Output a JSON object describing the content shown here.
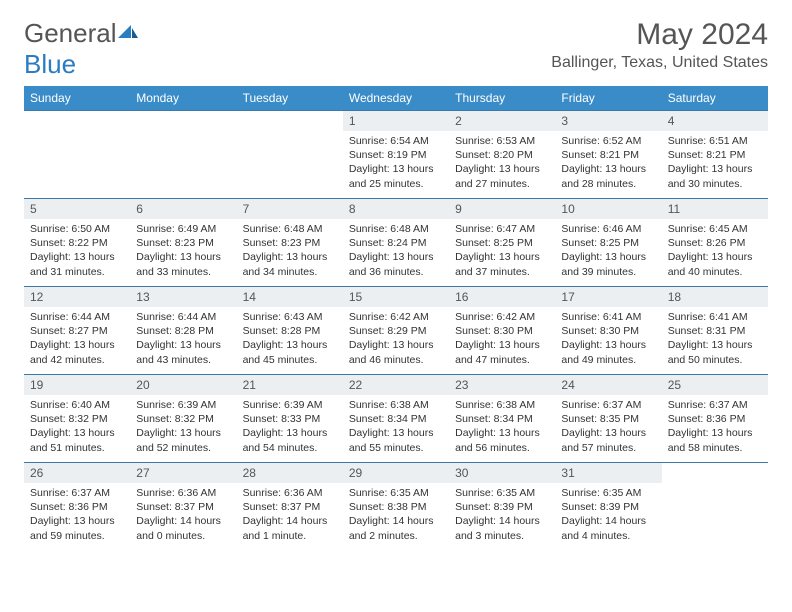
{
  "logo": {
    "general": "General",
    "blue": "Blue"
  },
  "title": "May 2024",
  "location": "Ballinger, Texas, United States",
  "header_color": "#3a8cc9",
  "border_color": "#3a7aa8",
  "daynum_bg": "#eceff1",
  "weekdays": [
    "Sunday",
    "Monday",
    "Tuesday",
    "Wednesday",
    "Thursday",
    "Friday",
    "Saturday"
  ],
  "days": [
    {
      "n": "",
      "sr": "",
      "ss": "",
      "dl": ""
    },
    {
      "n": "",
      "sr": "",
      "ss": "",
      "dl": ""
    },
    {
      "n": "",
      "sr": "",
      "ss": "",
      "dl": ""
    },
    {
      "n": "1",
      "sr": "Sunrise: 6:54 AM",
      "ss": "Sunset: 8:19 PM",
      "dl": "Daylight: 13 hours and 25 minutes."
    },
    {
      "n": "2",
      "sr": "Sunrise: 6:53 AM",
      "ss": "Sunset: 8:20 PM",
      "dl": "Daylight: 13 hours and 27 minutes."
    },
    {
      "n": "3",
      "sr": "Sunrise: 6:52 AM",
      "ss": "Sunset: 8:21 PM",
      "dl": "Daylight: 13 hours and 28 minutes."
    },
    {
      "n": "4",
      "sr": "Sunrise: 6:51 AM",
      "ss": "Sunset: 8:21 PM",
      "dl": "Daylight: 13 hours and 30 minutes."
    },
    {
      "n": "5",
      "sr": "Sunrise: 6:50 AM",
      "ss": "Sunset: 8:22 PM",
      "dl": "Daylight: 13 hours and 31 minutes."
    },
    {
      "n": "6",
      "sr": "Sunrise: 6:49 AM",
      "ss": "Sunset: 8:23 PM",
      "dl": "Daylight: 13 hours and 33 minutes."
    },
    {
      "n": "7",
      "sr": "Sunrise: 6:48 AM",
      "ss": "Sunset: 8:23 PM",
      "dl": "Daylight: 13 hours and 34 minutes."
    },
    {
      "n": "8",
      "sr": "Sunrise: 6:48 AM",
      "ss": "Sunset: 8:24 PM",
      "dl": "Daylight: 13 hours and 36 minutes."
    },
    {
      "n": "9",
      "sr": "Sunrise: 6:47 AM",
      "ss": "Sunset: 8:25 PM",
      "dl": "Daylight: 13 hours and 37 minutes."
    },
    {
      "n": "10",
      "sr": "Sunrise: 6:46 AM",
      "ss": "Sunset: 8:25 PM",
      "dl": "Daylight: 13 hours and 39 minutes."
    },
    {
      "n": "11",
      "sr": "Sunrise: 6:45 AM",
      "ss": "Sunset: 8:26 PM",
      "dl": "Daylight: 13 hours and 40 minutes."
    },
    {
      "n": "12",
      "sr": "Sunrise: 6:44 AM",
      "ss": "Sunset: 8:27 PM",
      "dl": "Daylight: 13 hours and 42 minutes."
    },
    {
      "n": "13",
      "sr": "Sunrise: 6:44 AM",
      "ss": "Sunset: 8:28 PM",
      "dl": "Daylight: 13 hours and 43 minutes."
    },
    {
      "n": "14",
      "sr": "Sunrise: 6:43 AM",
      "ss": "Sunset: 8:28 PM",
      "dl": "Daylight: 13 hours and 45 minutes."
    },
    {
      "n": "15",
      "sr": "Sunrise: 6:42 AM",
      "ss": "Sunset: 8:29 PM",
      "dl": "Daylight: 13 hours and 46 minutes."
    },
    {
      "n": "16",
      "sr": "Sunrise: 6:42 AM",
      "ss": "Sunset: 8:30 PM",
      "dl": "Daylight: 13 hours and 47 minutes."
    },
    {
      "n": "17",
      "sr": "Sunrise: 6:41 AM",
      "ss": "Sunset: 8:30 PM",
      "dl": "Daylight: 13 hours and 49 minutes."
    },
    {
      "n": "18",
      "sr": "Sunrise: 6:41 AM",
      "ss": "Sunset: 8:31 PM",
      "dl": "Daylight: 13 hours and 50 minutes."
    },
    {
      "n": "19",
      "sr": "Sunrise: 6:40 AM",
      "ss": "Sunset: 8:32 PM",
      "dl": "Daylight: 13 hours and 51 minutes."
    },
    {
      "n": "20",
      "sr": "Sunrise: 6:39 AM",
      "ss": "Sunset: 8:32 PM",
      "dl": "Daylight: 13 hours and 52 minutes."
    },
    {
      "n": "21",
      "sr": "Sunrise: 6:39 AM",
      "ss": "Sunset: 8:33 PM",
      "dl": "Daylight: 13 hours and 54 minutes."
    },
    {
      "n": "22",
      "sr": "Sunrise: 6:38 AM",
      "ss": "Sunset: 8:34 PM",
      "dl": "Daylight: 13 hours and 55 minutes."
    },
    {
      "n": "23",
      "sr": "Sunrise: 6:38 AM",
      "ss": "Sunset: 8:34 PM",
      "dl": "Daylight: 13 hours and 56 minutes."
    },
    {
      "n": "24",
      "sr": "Sunrise: 6:37 AM",
      "ss": "Sunset: 8:35 PM",
      "dl": "Daylight: 13 hours and 57 minutes."
    },
    {
      "n": "25",
      "sr": "Sunrise: 6:37 AM",
      "ss": "Sunset: 8:36 PM",
      "dl": "Daylight: 13 hours and 58 minutes."
    },
    {
      "n": "26",
      "sr": "Sunrise: 6:37 AM",
      "ss": "Sunset: 8:36 PM",
      "dl": "Daylight: 13 hours and 59 minutes."
    },
    {
      "n": "27",
      "sr": "Sunrise: 6:36 AM",
      "ss": "Sunset: 8:37 PM",
      "dl": "Daylight: 14 hours and 0 minutes."
    },
    {
      "n": "28",
      "sr": "Sunrise: 6:36 AM",
      "ss": "Sunset: 8:37 PM",
      "dl": "Daylight: 14 hours and 1 minute."
    },
    {
      "n": "29",
      "sr": "Sunrise: 6:35 AM",
      "ss": "Sunset: 8:38 PM",
      "dl": "Daylight: 14 hours and 2 minutes."
    },
    {
      "n": "30",
      "sr": "Sunrise: 6:35 AM",
      "ss": "Sunset: 8:39 PM",
      "dl": "Daylight: 14 hours and 3 minutes."
    },
    {
      "n": "31",
      "sr": "Sunrise: 6:35 AM",
      "ss": "Sunset: 8:39 PM",
      "dl": "Daylight: 14 hours and 4 minutes."
    },
    {
      "n": "",
      "sr": "",
      "ss": "",
      "dl": ""
    }
  ]
}
